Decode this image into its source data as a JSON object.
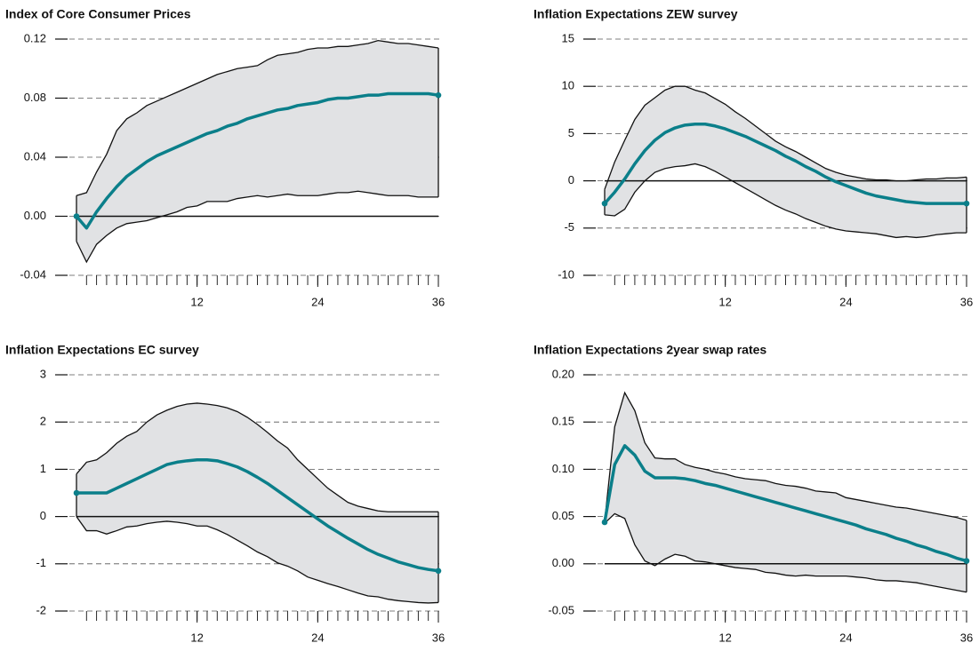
{
  "chart_data": [
    {
      "type": "line",
      "title": "Index of Core Consumer Prices",
      "x": [
        0,
        1,
        2,
        3,
        4,
        5,
        6,
        7,
        8,
        9,
        10,
        11,
        12,
        13,
        14,
        15,
        16,
        17,
        18,
        19,
        20,
        21,
        22,
        23,
        24,
        25,
        26,
        27,
        28,
        29,
        30,
        31,
        32,
        33,
        34,
        35,
        36
      ],
      "xlim": [
        0,
        36
      ],
      "xticks": [
        12,
        24,
        36
      ],
      "minor_ticks": true,
      "ylim": [
        -0.04,
        0.12
      ],
      "yticks": [
        -0.04,
        {
          "value": 0,
          "label": "0.00"
        },
        0.04,
        0.08,
        0.12
      ],
      "grid": true,
      "zero_line": true,
      "series": [
        {
          "color": "#0b7f8a",
          "values": [
            0,
            -0.008,
            0.003,
            0.012,
            0.02,
            0.027,
            0.032,
            0.037,
            0.041,
            0.044,
            0.047,
            0.05,
            0.053,
            0.056,
            0.058,
            0.061,
            0.063,
            0.066,
            0.068,
            0.07,
            0.072,
            0.073,
            0.075,
            0.076,
            0.077,
            0.079,
            0.08,
            0.08,
            0.081,
            0.082,
            0.082,
            0.083,
            0.083,
            0.083,
            0.083,
            0.083,
            0.082
          ]
        }
      ],
      "band": {
        "color": "#e1e2e4",
        "upper": [
          0.014,
          0.016,
          0.03,
          0.042,
          0.058,
          0.066,
          0.07,
          0.075,
          0.078,
          0.081,
          0.084,
          0.087,
          0.09,
          0.093,
          0.096,
          0.098,
          0.1,
          0.101,
          0.102,
          0.106,
          0.109,
          0.11,
          0.111,
          0.113,
          0.114,
          0.114,
          0.115,
          0.115,
          0.116,
          0.117,
          0.119,
          0.118,
          0.117,
          0.117,
          0.116,
          0.115,
          0.114
        ],
        "lower": [
          -0.017,
          -0.031,
          -0.019,
          -0.013,
          -0.008,
          -0.005,
          -0.004,
          -0.003,
          -0.001,
          0.001,
          0.003,
          0.006,
          0.007,
          0.01,
          0.01,
          0.01,
          0.012,
          0.013,
          0.014,
          0.013,
          0.014,
          0.015,
          0.014,
          0.014,
          0.014,
          0.015,
          0.016,
          0.016,
          0.017,
          0.016,
          0.015,
          0.014,
          0.014,
          0.014,
          0.013,
          0.013,
          0.013
        ]
      }
    },
    {
      "type": "line",
      "title": "Inflation Expectations ZEW survey",
      "x": [
        0,
        1,
        2,
        3,
        4,
        5,
        6,
        7,
        8,
        9,
        10,
        11,
        12,
        13,
        14,
        15,
        16,
        17,
        18,
        19,
        20,
        21,
        22,
        23,
        24,
        25,
        26,
        27,
        28,
        29,
        30,
        31,
        32,
        33,
        34,
        35,
        36
      ],
      "xlim": [
        0,
        36
      ],
      "xticks": [
        12,
        24,
        36
      ],
      "minor_ticks": true,
      "ylim": [
        -10,
        15
      ],
      "yticks": [
        -10,
        -5,
        0,
        5,
        10,
        15
      ],
      "grid": true,
      "zero_line": true,
      "series": [
        {
          "color": "#0b7f8a",
          "values": [
            -2.4,
            -1.2,
            0.2,
            1.8,
            3.2,
            4.3,
            5.1,
            5.6,
            5.9,
            6.0,
            6.0,
            5.8,
            5.5,
            5.1,
            4.7,
            4.2,
            3.7,
            3.2,
            2.6,
            2.1,
            1.5,
            1.0,
            0.4,
            -0.1,
            -0.5,
            -0.9,
            -1.3,
            -1.6,
            -1.8,
            -2.0,
            -2.2,
            -2.3,
            -2.4,
            -2.4,
            -2.4,
            -2.4,
            -2.4
          ]
        }
      ],
      "band": {
        "color": "#e1e2e4",
        "upper": [
          -0.9,
          2.0,
          4.3,
          6.5,
          8.0,
          8.8,
          9.6,
          10.0,
          10.0,
          9.6,
          9.3,
          8.7,
          8.1,
          7.3,
          6.6,
          5.8,
          5.0,
          4.2,
          3.6,
          3.1,
          2.5,
          1.9,
          1.3,
          0.9,
          0.6,
          0.4,
          0.2,
          0.1,
          0.1,
          0.0,
          0.0,
          0.1,
          0.2,
          0.2,
          0.3,
          0.3,
          0.4
        ],
        "lower": [
          -3.6,
          -3.7,
          -3.0,
          -1.2,
          0.0,
          0.9,
          1.3,
          1.5,
          1.6,
          1.8,
          1.5,
          1.0,
          0.4,
          -0.2,
          -0.8,
          -1.4,
          -2.0,
          -2.6,
          -3.1,
          -3.5,
          -4.0,
          -4.4,
          -4.8,
          -5.1,
          -5.3,
          -5.4,
          -5.5,
          -5.6,
          -5.8,
          -6.0,
          -5.9,
          -6.0,
          -5.9,
          -5.7,
          -5.6,
          -5.5,
          -5.5
        ]
      }
    },
    {
      "type": "line",
      "title": "Inflation Expectations EC survey",
      "x": [
        0,
        1,
        2,
        3,
        4,
        5,
        6,
        7,
        8,
        9,
        10,
        11,
        12,
        13,
        14,
        15,
        16,
        17,
        18,
        19,
        20,
        21,
        22,
        23,
        24,
        25,
        26,
        27,
        28,
        29,
        30,
        31,
        32,
        33,
        34,
        35,
        36
      ],
      "xlim": [
        0,
        36
      ],
      "xticks": [
        12,
        24,
        36
      ],
      "minor_ticks": true,
      "ylim": [
        -2,
        3
      ],
      "yticks": [
        -2,
        -1,
        0,
        1,
        2,
        3
      ],
      "grid": true,
      "zero_line": true,
      "series": [
        {
          "color": "#0b7f8a",
          "values": [
            0.5,
            0.5,
            0.5,
            0.5,
            0.6,
            0.7,
            0.8,
            0.9,
            1.0,
            1.1,
            1.15,
            1.18,
            1.2,
            1.2,
            1.18,
            1.12,
            1.05,
            0.95,
            0.83,
            0.7,
            0.55,
            0.4,
            0.25,
            0.1,
            -0.05,
            -0.2,
            -0.33,
            -0.46,
            -0.58,
            -0.7,
            -0.8,
            -0.88,
            -0.96,
            -1.02,
            -1.08,
            -1.12,
            -1.15
          ]
        }
      ],
      "band": {
        "color": "#e1e2e4",
        "upper": [
          0.9,
          1.15,
          1.2,
          1.35,
          1.55,
          1.7,
          1.8,
          2.0,
          2.15,
          2.25,
          2.33,
          2.38,
          2.4,
          2.38,
          2.35,
          2.3,
          2.22,
          2.1,
          1.95,
          1.78,
          1.6,
          1.45,
          1.2,
          1.0,
          0.8,
          0.6,
          0.45,
          0.3,
          0.22,
          0.17,
          0.12,
          0.1,
          0.1,
          0.1,
          0.1,
          0.1,
          0.1
        ],
        "lower": [
          0.0,
          -0.3,
          -0.3,
          -0.37,
          -0.3,
          -0.22,
          -0.2,
          -0.15,
          -0.12,
          -0.1,
          -0.12,
          -0.15,
          -0.2,
          -0.2,
          -0.28,
          -0.38,
          -0.5,
          -0.62,
          -0.75,
          -0.85,
          -0.98,
          -1.05,
          -1.15,
          -1.28,
          -1.35,
          -1.42,
          -1.48,
          -1.55,
          -1.62,
          -1.68,
          -1.7,
          -1.75,
          -1.78,
          -1.8,
          -1.82,
          -1.83,
          -1.82
        ]
      }
    },
    {
      "type": "line",
      "title": "Inflation Expectations 2year swap rates",
      "x": [
        0,
        1,
        2,
        3,
        4,
        5,
        6,
        7,
        8,
        9,
        10,
        11,
        12,
        13,
        14,
        15,
        16,
        17,
        18,
        19,
        20,
        21,
        22,
        23,
        24,
        25,
        26,
        27,
        28,
        29,
        30,
        31,
        32,
        33,
        34,
        35,
        36
      ],
      "xlim": [
        0,
        36
      ],
      "xticks": [
        12,
        24,
        36
      ],
      "minor_ticks": true,
      "ylim": [
        -0.05,
        0.2
      ],
      "yticks": [
        -0.05,
        {
          "value": 0,
          "label": "0.00"
        },
        0.05,
        {
          "value": 0.1,
          "label": "0.10"
        },
        0.15,
        {
          "value": 0.2,
          "label": "0.20"
        }
      ],
      "grid": true,
      "zero_line": true,
      "series": [
        {
          "color": "#0b7f8a",
          "values": [
            0.044,
            0.105,
            0.125,
            0.115,
            0.098,
            0.091,
            0.091,
            0.091,
            0.09,
            0.088,
            0.085,
            0.083,
            0.08,
            0.077,
            0.074,
            0.071,
            0.068,
            0.065,
            0.062,
            0.059,
            0.056,
            0.053,
            0.05,
            0.047,
            0.044,
            0.041,
            0.037,
            0.034,
            0.031,
            0.027,
            0.024,
            0.02,
            0.017,
            0.013,
            0.01,
            0.006,
            0.003
          ]
        }
      ],
      "band": {
        "color": "#e1e2e4",
        "upper": [
          0.045,
          0.145,
          0.181,
          0.162,
          0.128,
          0.112,
          0.111,
          0.111,
          0.105,
          0.102,
          0.1,
          0.097,
          0.095,
          0.092,
          0.09,
          0.089,
          0.088,
          0.085,
          0.083,
          0.082,
          0.08,
          0.077,
          0.076,
          0.075,
          0.07,
          0.068,
          0.066,
          0.064,
          0.062,
          0.06,
          0.059,
          0.057,
          0.055,
          0.053,
          0.051,
          0.049,
          0.046
        ],
        "lower": [
          0.043,
          0.053,
          0.048,
          0.02,
          0.003,
          -0.002,
          0.005,
          0.01,
          0.008,
          0.003,
          0.002,
          0.0,
          -0.002,
          -0.004,
          -0.005,
          -0.006,
          -0.009,
          -0.01,
          -0.012,
          -0.013,
          -0.012,
          -0.013,
          -0.013,
          -0.013,
          -0.013,
          -0.014,
          -0.015,
          -0.017,
          -0.018,
          -0.018,
          -0.019,
          -0.02,
          -0.022,
          -0.024,
          -0.026,
          -0.028,
          -0.03
        ]
      }
    }
  ]
}
